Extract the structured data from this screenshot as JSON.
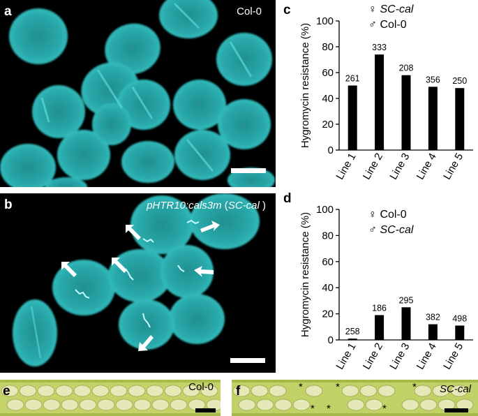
{
  "panels": {
    "a": {
      "letter": "a",
      "label": "Col-0"
    },
    "b": {
      "letter": "b",
      "label_italic": "pHTR10:cals3m",
      "label_paren_open": " (",
      "label_italic2": "SC-cal",
      "label_paren_close": " )"
    },
    "c": {
      "letter": "c"
    },
    "d": {
      "letter": "d"
    },
    "e": {
      "letter": "e",
      "label": "Col-0"
    },
    "f": {
      "letter": "f",
      "label": "SC-cal",
      "marker": "*"
    }
  },
  "colors": {
    "microscope_bg": "#000000",
    "pollen": "#27a6a6",
    "callose": "#bdf7ff",
    "bar": "#000000",
    "leaf": "#b8c95a"
  },
  "chart_data": [
    {
      "type": "bar",
      "panel": "c",
      "legend": [
        {
          "symbol": "♀",
          "text": "SC-cal"
        },
        {
          "symbol": "♂",
          "text": "Col-0"
        }
      ],
      "categories": [
        "Line 1",
        "Line 2",
        "Line 3",
        "Line 4",
        "Line 5"
      ],
      "values": [
        50,
        74,
        58,
        49,
        48
      ],
      "data_labels": [
        "261",
        "333",
        "208",
        "356",
        "250"
      ],
      "ylabel": "Hygromycin resistance (%)",
      "ylim": [
        0,
        100
      ],
      "yticks": [
        0,
        20,
        40,
        60,
        80,
        100
      ]
    },
    {
      "type": "bar",
      "panel": "d",
      "legend": [
        {
          "symbol": "♀",
          "text": "Col-0"
        },
        {
          "symbol": "♂",
          "text": "SC-cal"
        }
      ],
      "categories": [
        "Line 1",
        "Line 2",
        "Line 3",
        "Line 4",
        "Line 5"
      ],
      "values": [
        1,
        19,
        25,
        12,
        11
      ],
      "data_labels": [
        "258",
        "186",
        "295",
        "382",
        "498"
      ],
      "ylabel": "Hygromycin resistance (%)",
      "ylim": [
        0,
        100
      ],
      "yticks": [
        0,
        20,
        40,
        60,
        80,
        100
      ]
    }
  ]
}
